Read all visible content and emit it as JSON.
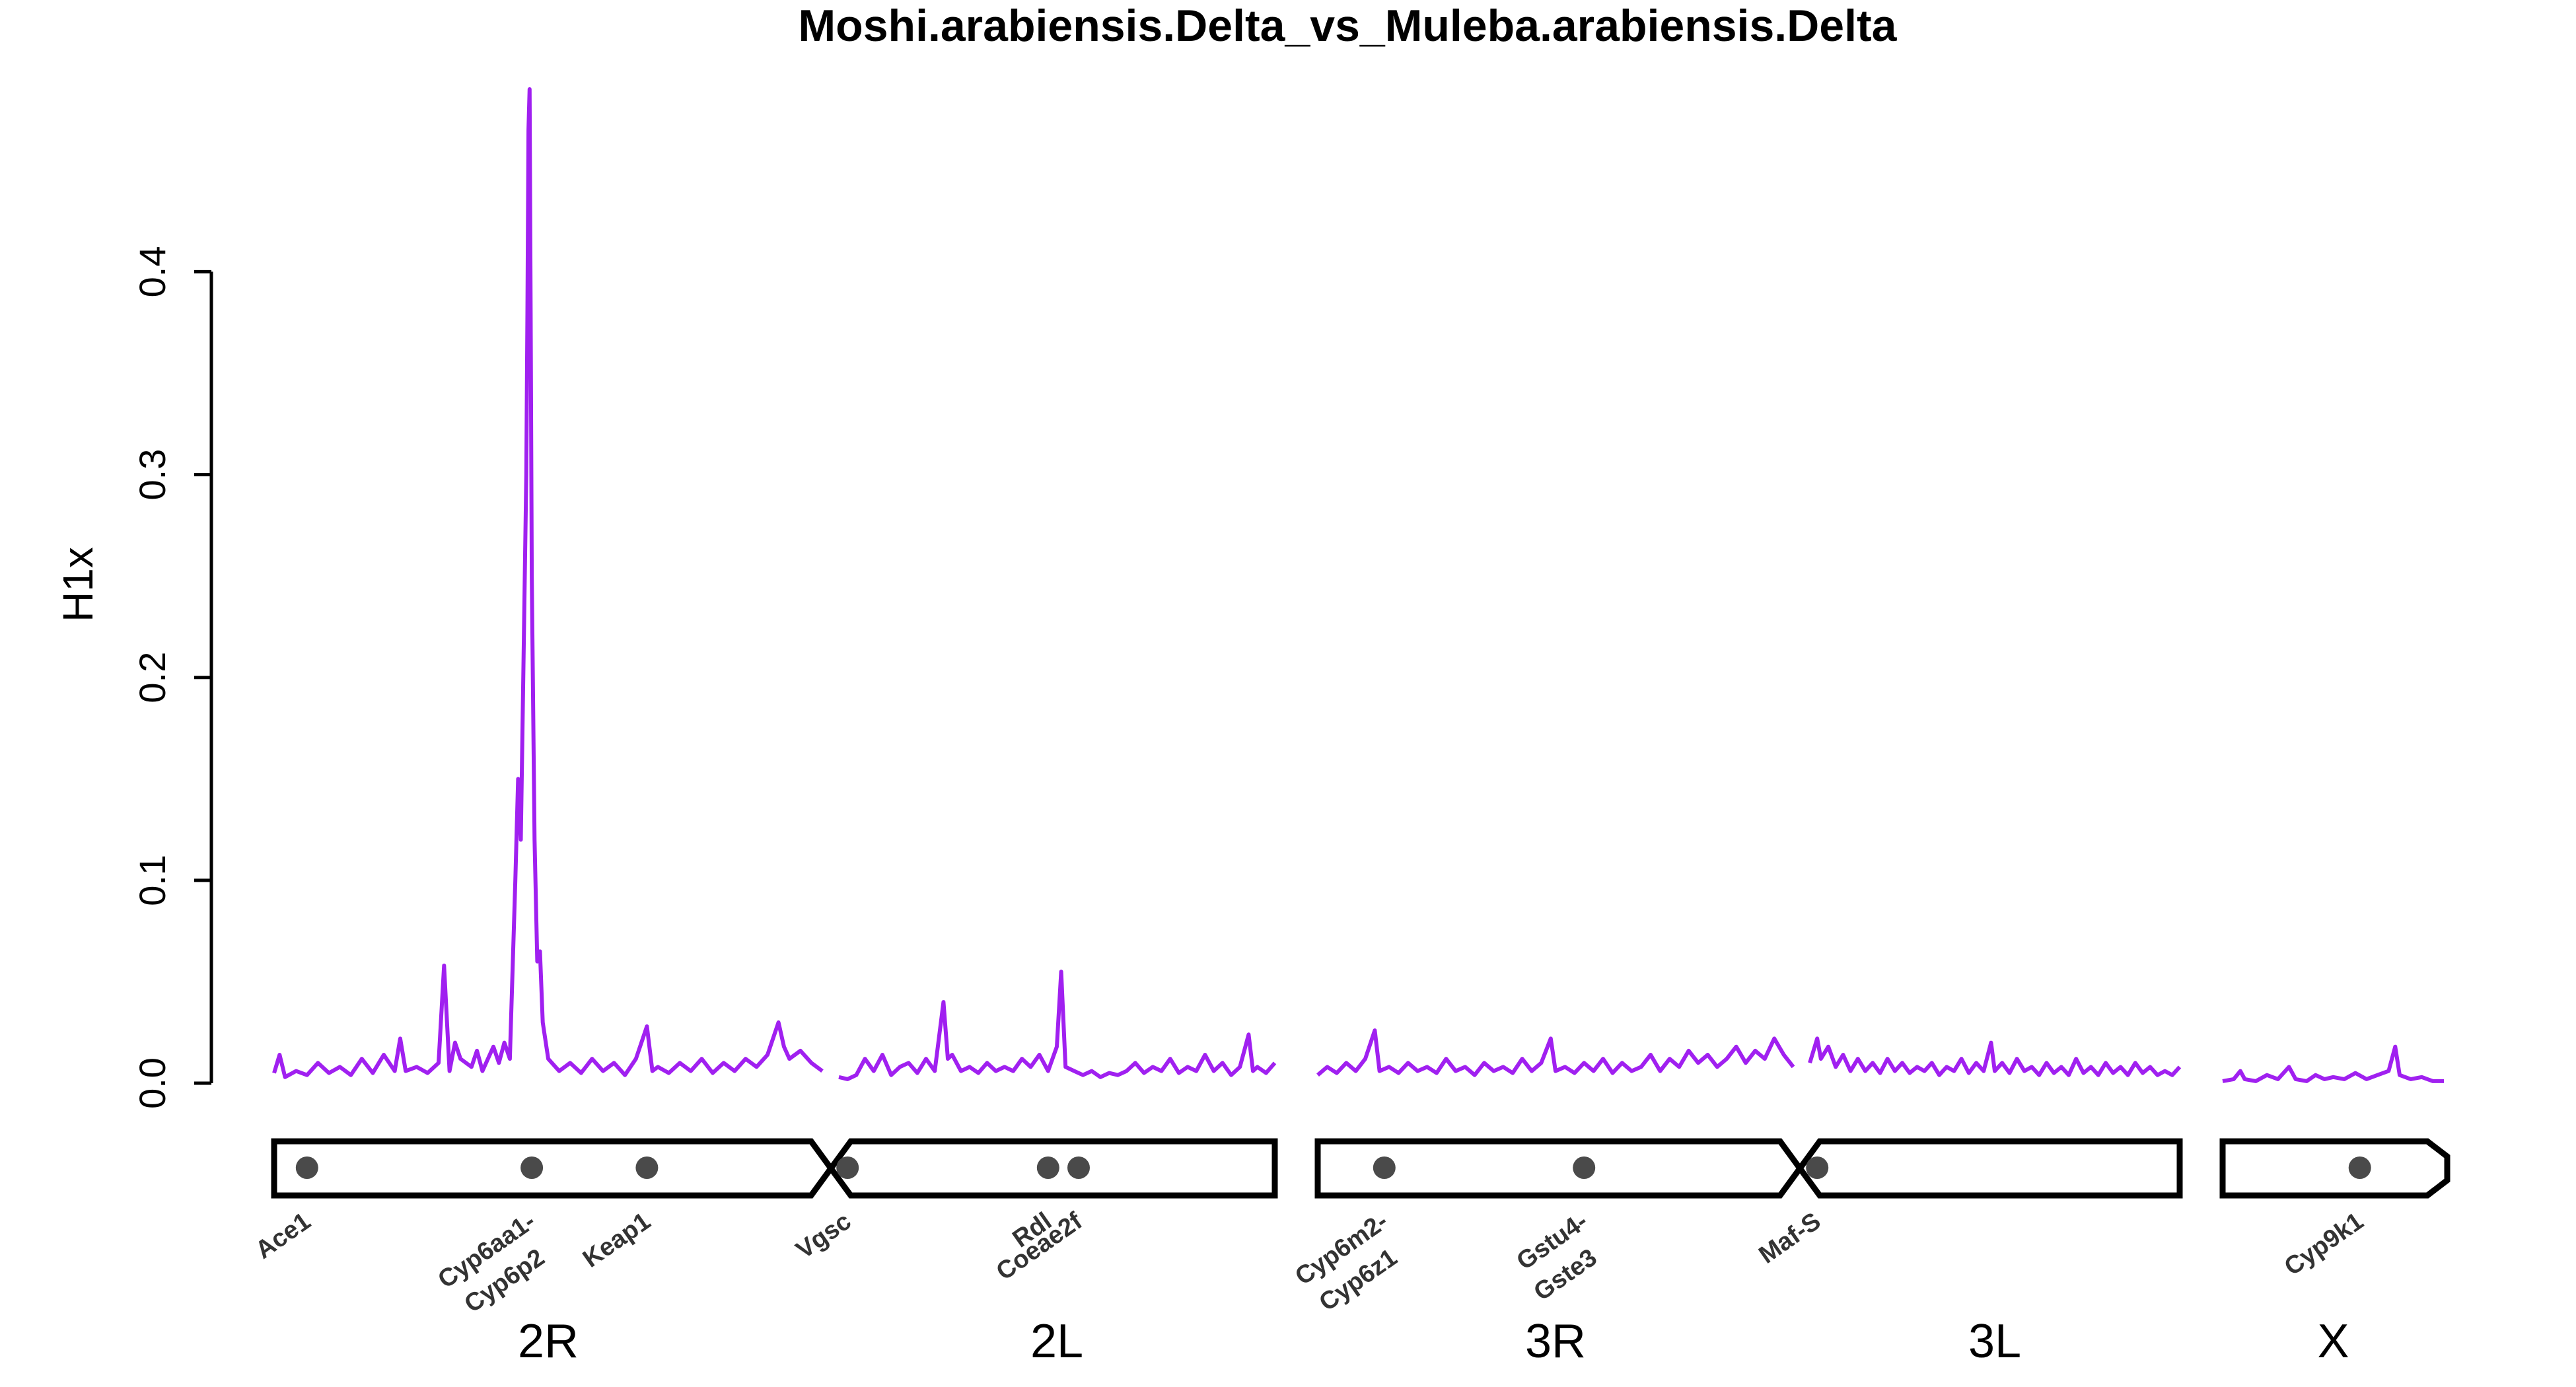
{
  "chart_data": {
    "type": "line",
    "title": "Moshi.arabiensis.Delta_vs_Muleba.arabiensis.Delta",
    "ylabel": "H1x",
    "xlabel": "",
    "ylim": [
      0,
      0.49
    ],
    "yticks": [
      0.0,
      0.1,
      0.2,
      0.3,
      0.4
    ],
    "ytick_labels": [
      "0.0",
      "0.1",
      "0.2",
      "0.3",
      "0.4"
    ],
    "line_color": "#A020F0",
    "gene_dot_color": "#4a4a4a",
    "chromosome_arms": [
      {
        "label": "2R",
        "index": 0
      },
      {
        "label": "2L",
        "index": 1
      },
      {
        "label": "3R",
        "index": 2
      },
      {
        "label": "3L",
        "index": 3
      },
      {
        "label": "X",
        "index": 4
      }
    ],
    "series": [
      {
        "arm": "2R",
        "points": [
          [
            0.0,
            0.005
          ],
          [
            0.01,
            0.014
          ],
          [
            0.02,
            0.003
          ],
          [
            0.04,
            0.006
          ],
          [
            0.06,
            0.004
          ],
          [
            0.08,
            0.01
          ],
          [
            0.1,
            0.005
          ],
          [
            0.12,
            0.008
          ],
          [
            0.14,
            0.004
          ],
          [
            0.16,
            0.012
          ],
          [
            0.18,
            0.005
          ],
          [
            0.2,
            0.014
          ],
          [
            0.22,
            0.006
          ],
          [
            0.23,
            0.022
          ],
          [
            0.24,
            0.006
          ],
          [
            0.26,
            0.008
          ],
          [
            0.28,
            0.005
          ],
          [
            0.3,
            0.01
          ],
          [
            0.31,
            0.058
          ],
          [
            0.32,
            0.006
          ],
          [
            0.33,
            0.02
          ],
          [
            0.34,
            0.012
          ],
          [
            0.36,
            0.008
          ],
          [
            0.37,
            0.016
          ],
          [
            0.38,
            0.006
          ],
          [
            0.4,
            0.018
          ],
          [
            0.41,
            0.01
          ],
          [
            0.42,
            0.02
          ],
          [
            0.43,
            0.012
          ],
          [
            0.44,
            0.1
          ],
          [
            0.445,
            0.15
          ],
          [
            0.45,
            0.12
          ],
          [
            0.455,
            0.21
          ],
          [
            0.46,
            0.3
          ],
          [
            0.462,
            0.38
          ],
          [
            0.464,
            0.47
          ],
          [
            0.466,
            0.49
          ],
          [
            0.468,
            0.38
          ],
          [
            0.47,
            0.25
          ],
          [
            0.475,
            0.12
          ],
          [
            0.48,
            0.06
          ],
          [
            0.485,
            0.065
          ],
          [
            0.49,
            0.03
          ],
          [
            0.5,
            0.012
          ],
          [
            0.52,
            0.006
          ],
          [
            0.54,
            0.01
          ],
          [
            0.56,
            0.005
          ],
          [
            0.58,
            0.012
          ],
          [
            0.6,
            0.006
          ],
          [
            0.62,
            0.01
          ],
          [
            0.64,
            0.004
          ],
          [
            0.66,
            0.012
          ],
          [
            0.68,
            0.028
          ],
          [
            0.69,
            0.006
          ],
          [
            0.7,
            0.008
          ],
          [
            0.72,
            0.005
          ],
          [
            0.74,
            0.01
          ],
          [
            0.76,
            0.006
          ],
          [
            0.78,
            0.012
          ],
          [
            0.8,
            0.005
          ],
          [
            0.82,
            0.01
          ],
          [
            0.84,
            0.006
          ],
          [
            0.86,
            0.012
          ],
          [
            0.88,
            0.008
          ],
          [
            0.9,
            0.014
          ],
          [
            0.92,
            0.03
          ],
          [
            0.93,
            0.018
          ],
          [
            0.94,
            0.012
          ],
          [
            0.96,
            0.016
          ],
          [
            0.98,
            0.01
          ],
          [
            1.0,
            0.006
          ]
        ]
      },
      {
        "arm": "2L",
        "points": [
          [
            0.0,
            0.003
          ],
          [
            0.02,
            0.002
          ],
          [
            0.04,
            0.004
          ],
          [
            0.06,
            0.012
          ],
          [
            0.08,
            0.006
          ],
          [
            0.1,
            0.014
          ],
          [
            0.12,
            0.004
          ],
          [
            0.14,
            0.008
          ],
          [
            0.16,
            0.01
          ],
          [
            0.18,
            0.005
          ],
          [
            0.2,
            0.012
          ],
          [
            0.22,
            0.006
          ],
          [
            0.24,
            0.04
          ],
          [
            0.25,
            0.012
          ],
          [
            0.26,
            0.014
          ],
          [
            0.28,
            0.006
          ],
          [
            0.3,
            0.008
          ],
          [
            0.32,
            0.005
          ],
          [
            0.34,
            0.01
          ],
          [
            0.36,
            0.006
          ],
          [
            0.38,
            0.008
          ],
          [
            0.4,
            0.006
          ],
          [
            0.42,
            0.012
          ],
          [
            0.44,
            0.008
          ],
          [
            0.46,
            0.014
          ],
          [
            0.48,
            0.006
          ],
          [
            0.5,
            0.018
          ],
          [
            0.51,
            0.055
          ],
          [
            0.52,
            0.008
          ],
          [
            0.54,
            0.006
          ],
          [
            0.56,
            0.004
          ],
          [
            0.58,
            0.006
          ],
          [
            0.6,
            0.003
          ],
          [
            0.62,
            0.005
          ],
          [
            0.64,
            0.004
          ],
          [
            0.66,
            0.006
          ],
          [
            0.68,
            0.01
          ],
          [
            0.7,
            0.005
          ],
          [
            0.72,
            0.008
          ],
          [
            0.74,
            0.006
          ],
          [
            0.76,
            0.012
          ],
          [
            0.78,
            0.005
          ],
          [
            0.8,
            0.008
          ],
          [
            0.82,
            0.006
          ],
          [
            0.84,
            0.014
          ],
          [
            0.86,
            0.006
          ],
          [
            0.88,
            0.01
          ],
          [
            0.9,
            0.004
          ],
          [
            0.92,
            0.008
          ],
          [
            0.94,
            0.024
          ],
          [
            0.95,
            0.006
          ],
          [
            0.96,
            0.008
          ],
          [
            0.98,
            0.005
          ],
          [
            1.0,
            0.01
          ]
        ]
      },
      {
        "arm": "3R",
        "points": [
          [
            0.0,
            0.004
          ],
          [
            0.02,
            0.008
          ],
          [
            0.04,
            0.005
          ],
          [
            0.06,
            0.01
          ],
          [
            0.08,
            0.006
          ],
          [
            0.1,
            0.012
          ],
          [
            0.12,
            0.026
          ],
          [
            0.13,
            0.006
          ],
          [
            0.15,
            0.008
          ],
          [
            0.17,
            0.005
          ],
          [
            0.19,
            0.01
          ],
          [
            0.21,
            0.006
          ],
          [
            0.23,
            0.008
          ],
          [
            0.25,
            0.005
          ],
          [
            0.27,
            0.012
          ],
          [
            0.29,
            0.006
          ],
          [
            0.31,
            0.008
          ],
          [
            0.33,
            0.004
          ],
          [
            0.35,
            0.01
          ],
          [
            0.37,
            0.006
          ],
          [
            0.39,
            0.008
          ],
          [
            0.41,
            0.005
          ],
          [
            0.43,
            0.012
          ],
          [
            0.45,
            0.006
          ],
          [
            0.47,
            0.01
          ],
          [
            0.49,
            0.022
          ],
          [
            0.5,
            0.006
          ],
          [
            0.52,
            0.008
          ],
          [
            0.54,
            0.005
          ],
          [
            0.56,
            0.01
          ],
          [
            0.58,
            0.006
          ],
          [
            0.6,
            0.012
          ],
          [
            0.62,
            0.005
          ],
          [
            0.64,
            0.01
          ],
          [
            0.66,
            0.006
          ],
          [
            0.68,
            0.008
          ],
          [
            0.7,
            0.014
          ],
          [
            0.72,
            0.006
          ],
          [
            0.74,
            0.012
          ],
          [
            0.76,
            0.008
          ],
          [
            0.78,
            0.016
          ],
          [
            0.8,
            0.01
          ],
          [
            0.82,
            0.014
          ],
          [
            0.84,
            0.008
          ],
          [
            0.86,
            0.012
          ],
          [
            0.88,
            0.018
          ],
          [
            0.9,
            0.01
          ],
          [
            0.92,
            0.016
          ],
          [
            0.94,
            0.012
          ],
          [
            0.96,
            0.022
          ],
          [
            0.98,
            0.014
          ],
          [
            1.0,
            0.008
          ]
        ]
      },
      {
        "arm": "3L",
        "points": [
          [
            0.0,
            0.01
          ],
          [
            0.02,
            0.022
          ],
          [
            0.03,
            0.012
          ],
          [
            0.05,
            0.018
          ],
          [
            0.07,
            0.008
          ],
          [
            0.09,
            0.014
          ],
          [
            0.11,
            0.006
          ],
          [
            0.13,
            0.012
          ],
          [
            0.15,
            0.006
          ],
          [
            0.17,
            0.01
          ],
          [
            0.19,
            0.005
          ],
          [
            0.21,
            0.012
          ],
          [
            0.23,
            0.006
          ],
          [
            0.25,
            0.01
          ],
          [
            0.27,
            0.005
          ],
          [
            0.29,
            0.008
          ],
          [
            0.31,
            0.006
          ],
          [
            0.33,
            0.01
          ],
          [
            0.35,
            0.004
          ],
          [
            0.37,
            0.008
          ],
          [
            0.39,
            0.006
          ],
          [
            0.41,
            0.012
          ],
          [
            0.43,
            0.005
          ],
          [
            0.45,
            0.01
          ],
          [
            0.47,
            0.006
          ],
          [
            0.49,
            0.02
          ],
          [
            0.5,
            0.006
          ],
          [
            0.52,
            0.01
          ],
          [
            0.54,
            0.005
          ],
          [
            0.56,
            0.012
          ],
          [
            0.58,
            0.006
          ],
          [
            0.6,
            0.008
          ],
          [
            0.62,
            0.004
          ],
          [
            0.64,
            0.01
          ],
          [
            0.66,
            0.005
          ],
          [
            0.68,
            0.008
          ],
          [
            0.7,
            0.004
          ],
          [
            0.72,
            0.012
          ],
          [
            0.74,
            0.005
          ],
          [
            0.76,
            0.008
          ],
          [
            0.78,
            0.004
          ],
          [
            0.8,
            0.01
          ],
          [
            0.82,
            0.005
          ],
          [
            0.84,
            0.008
          ],
          [
            0.86,
            0.004
          ],
          [
            0.88,
            0.01
          ],
          [
            0.9,
            0.005
          ],
          [
            0.92,
            0.008
          ],
          [
            0.94,
            0.004
          ],
          [
            0.96,
            0.006
          ],
          [
            0.98,
            0.004
          ],
          [
            1.0,
            0.008
          ]
        ]
      },
      {
        "arm": "X",
        "points": [
          [
            0.0,
            0.001
          ],
          [
            0.05,
            0.002
          ],
          [
            0.08,
            0.006
          ],
          [
            0.1,
            0.002
          ],
          [
            0.15,
            0.001
          ],
          [
            0.2,
            0.004
          ],
          [
            0.25,
            0.002
          ],
          [
            0.3,
            0.008
          ],
          [
            0.33,
            0.002
          ],
          [
            0.38,
            0.001
          ],
          [
            0.42,
            0.004
          ],
          [
            0.46,
            0.002
          ],
          [
            0.5,
            0.003
          ],
          [
            0.55,
            0.002
          ],
          [
            0.6,
            0.005
          ],
          [
            0.65,
            0.002
          ],
          [
            0.7,
            0.004
          ],
          [
            0.75,
            0.006
          ],
          [
            0.78,
            0.018
          ],
          [
            0.8,
            0.004
          ],
          [
            0.85,
            0.002
          ],
          [
            0.9,
            0.003
          ],
          [
            0.95,
            0.001
          ],
          [
            1.0,
            0.001
          ]
        ]
      }
    ],
    "genes": [
      {
        "name": "Ace1",
        "arm": "2R",
        "pos": 0.06
      },
      {
        "name": "Cyp6aa1-",
        "arm": "2R",
        "pos": 0.47
      },
      {
        "name": "Cyp6p2",
        "arm": "2R",
        "pos": 0.47
      },
      {
        "name": "Keap1",
        "arm": "2R",
        "pos": 0.68
      },
      {
        "name": "Vgsc",
        "arm": "2L",
        "pos": 0.02
      },
      {
        "name": "Rdl",
        "arm": "2L",
        "pos": 0.48
      },
      {
        "name": "Coeae2f",
        "arm": "2L",
        "pos": 0.55
      },
      {
        "name": "Cyp6m2-",
        "arm": "3R",
        "pos": 0.14
      },
      {
        "name": "Cyp6z1",
        "arm": "3R",
        "pos": 0.14
      },
      {
        "name": "Gstu4-",
        "arm": "3R",
        "pos": 0.56
      },
      {
        "name": "Gste3",
        "arm": "3R",
        "pos": 0.56
      },
      {
        "name": "Maf-S",
        "arm": "3L",
        "pos": 0.02
      },
      {
        "name": "Cyp9k1",
        "arm": "X",
        "pos": 0.62
      }
    ]
  }
}
